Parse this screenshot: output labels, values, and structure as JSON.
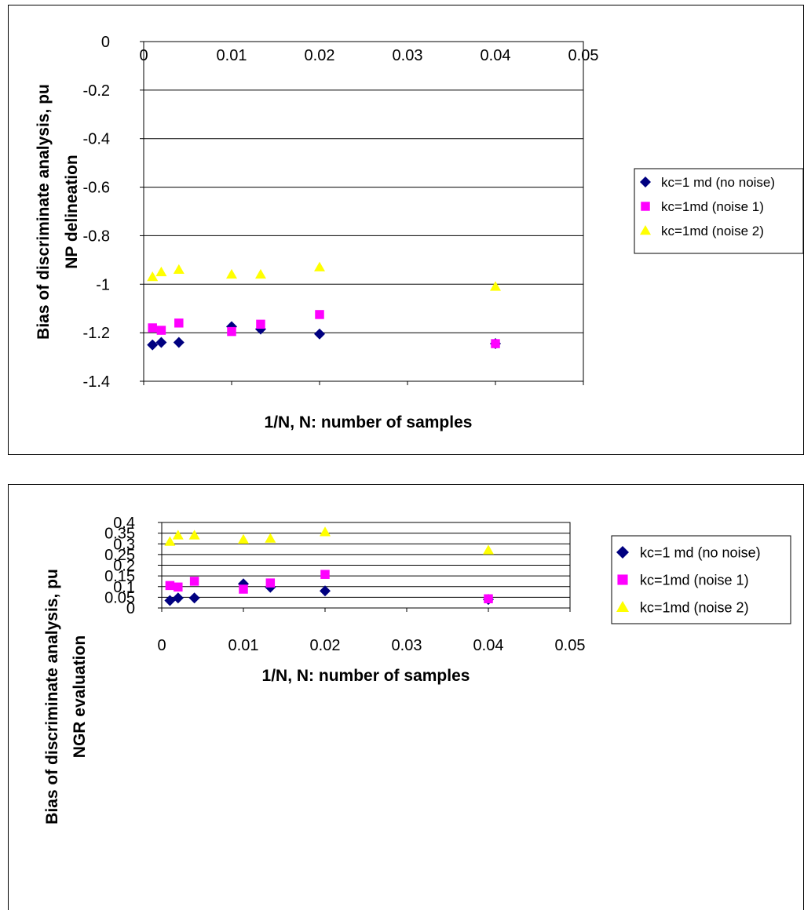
{
  "chart_data": [
    {
      "type": "scatter",
      "ylabel": [
        "Bias of discriminate analysis, pu",
        "NP delineation"
      ],
      "xlabel": "1/N, N: number of samples",
      "xlim": [
        0,
        0.05
      ],
      "ylim": [
        -1.4,
        0
      ],
      "x_ticks": [
        "0",
        "0.01",
        "0.02",
        "0.03",
        "0.04",
        "0.05"
      ],
      "y_ticks": [
        "0",
        "-0.2",
        "-0.4",
        "-0.6",
        "-0.8",
        "-1",
        "-1.2",
        "-1.4"
      ],
      "grid": "horizontal",
      "legend_position": "right",
      "series": [
        {
          "name": "kc=1 md (no noise)",
          "marker": "diamond",
          "color": "#000080",
          "x": [
            0.001,
            0.002,
            0.004,
            0.01,
            0.0133,
            0.02,
            0.04
          ],
          "y": [
            -1.25,
            -1.24,
            -1.24,
            -1.175,
            -1.185,
            -1.205,
            -1.245
          ]
        },
        {
          "name": "kc=1md (noise 1)",
          "marker": "square",
          "color": "#FF00FF",
          "x": [
            0.001,
            0.002,
            0.004,
            0.01,
            0.0133,
            0.02,
            0.04
          ],
          "y": [
            -1.18,
            -1.19,
            -1.16,
            -1.195,
            -1.165,
            -1.125,
            -1.245
          ]
        },
        {
          "name": "kc=1md (noise 2)",
          "marker": "triangle",
          "color": "#FFFF00",
          "x": [
            0.001,
            0.002,
            0.004,
            0.01,
            0.0133,
            0.02,
            0.04
          ],
          "y": [
            -0.97,
            -0.95,
            -0.94,
            -0.96,
            -0.96,
            -0.93,
            -1.01
          ]
        }
      ]
    },
    {
      "type": "scatter",
      "ylabel": [
        "Bias of discriminate analysis, pu",
        "NGR evaluation"
      ],
      "xlabel": "1/N, N: number of samples",
      "xlim": [
        0,
        0.05
      ],
      "ylim": [
        0,
        0.4
      ],
      "x_ticks": [
        "0",
        "0.01",
        "0.02",
        "0.03",
        "0.04",
        "0.05"
      ],
      "y_ticks": [
        "0.4",
        "0.35",
        "0.3",
        "0.25",
        "0.2",
        "0.15",
        "0.1",
        "0.05",
        "0"
      ],
      "grid": "horizontal",
      "legend_position": "right",
      "series": [
        {
          "name": "kc=1 md (no noise)",
          "marker": "diamond",
          "color": "#000080",
          "x": [
            0.001,
            0.002,
            0.004,
            0.01,
            0.0133,
            0.02,
            0.04
          ],
          "y": [
            0.035,
            0.047,
            0.047,
            0.113,
            0.097,
            0.08,
            0.04
          ]
        },
        {
          "name": "kc=1md (noise 1)",
          "marker": "square",
          "color": "#FF00FF",
          "x": [
            0.001,
            0.002,
            0.004,
            0.01,
            0.0133,
            0.02,
            0.04
          ],
          "y": [
            0.105,
            0.098,
            0.125,
            0.088,
            0.117,
            0.157,
            0.043
          ]
        },
        {
          "name": "kc=1md (noise 2)",
          "marker": "triangle",
          "color": "#FFFF00",
          "x": [
            0.001,
            0.002,
            0.004,
            0.01,
            0.0133,
            0.02,
            0.04
          ],
          "y": [
            0.31,
            0.34,
            0.34,
            0.32,
            0.325,
            0.355,
            0.27
          ]
        }
      ]
    }
  ]
}
